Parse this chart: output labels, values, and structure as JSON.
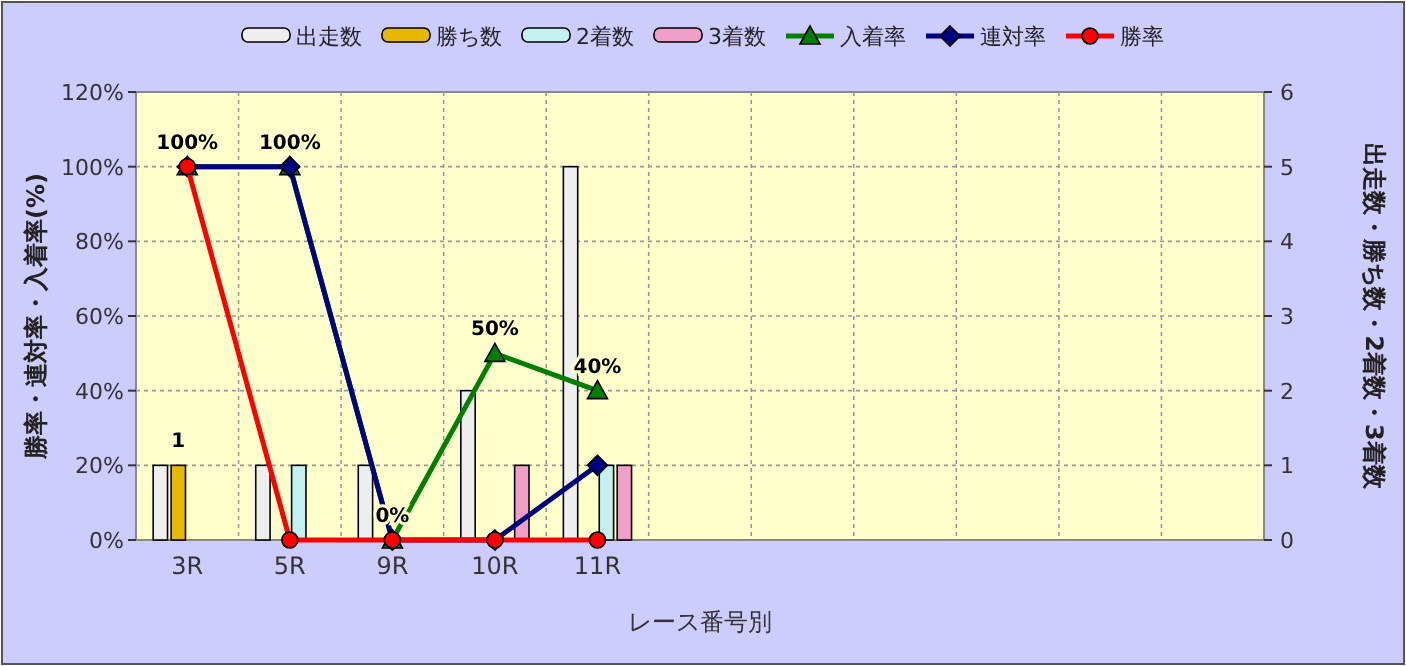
{
  "chart_data": {
    "type": "bar",
    "xlabel": "レース番号別",
    "ylabel": "勝率・連対率・入着率(%)",
    "y2label": "出走数・勝ち数・2着数・3着数",
    "categories": [
      "3R",
      "5R",
      "9R",
      "10R",
      "11R",
      null,
      null,
      null,
      null,
      null,
      null
    ],
    "ylim": [
      0,
      120
    ],
    "yticks": [
      {
        "value": 0,
        "label": "0%"
      },
      {
        "value": 20,
        "label": "20%"
      },
      {
        "value": 40,
        "label": "40%"
      },
      {
        "value": 60,
        "label": "60%"
      },
      {
        "value": 80,
        "label": "80%"
      },
      {
        "value": 100,
        "label": "100%"
      },
      {
        "value": 120,
        "label": "120%"
      }
    ],
    "y2lim": [
      0,
      6
    ],
    "y2ticks": [
      0,
      1,
      2,
      3,
      4,
      5,
      6
    ],
    "grid": true,
    "legend": "top",
    "series": [
      {
        "name": "出走数",
        "axis": "y2",
        "color": "#eeeeee",
        "values": [
          1,
          1,
          1,
          2,
          5,
          null,
          null,
          null,
          null,
          null,
          null
        ]
      },
      {
        "name": "勝ち数",
        "axis": "y2",
        "color": "#e6b800",
        "values": [
          1,
          0,
          0,
          0,
          0,
          null,
          null,
          null,
          null,
          null,
          null
        ],
        "value_labels": [
          "1",
          null,
          null,
          null,
          null,
          null,
          null,
          null,
          null,
          null,
          null
        ]
      },
      {
        "name": "2着数",
        "axis": "y2",
        "color": "#c4f0f0",
        "values": [
          0,
          1,
          0,
          0,
          1,
          null,
          null,
          null,
          null,
          null,
          null
        ]
      },
      {
        "name": "3着数",
        "axis": "y2",
        "color": "#f0a0c8",
        "values": [
          0,
          0,
          0,
          1,
          1,
          null,
          null,
          null,
          null,
          null,
          null
        ]
      },
      {
        "name": "入着率",
        "type": "line",
        "marker": "triangle",
        "color": "#008000",
        "values": [
          100,
          100,
          0,
          50,
          40,
          null,
          null,
          null,
          null,
          null,
          null
        ],
        "value_labels": [
          "100%",
          "100%",
          "0%",
          "50%",
          "40%",
          null,
          null,
          null,
          null,
          null,
          null
        ]
      },
      {
        "name": "連対率",
        "type": "line",
        "marker": "diamond",
        "color": "#000080",
        "values": [
          100,
          100,
          0,
          0,
          20,
          null,
          null,
          null,
          null,
          null,
          null
        ]
      },
      {
        "name": "勝率",
        "type": "line",
        "marker": "circle",
        "color": "#ff0000",
        "values": [
          100,
          0,
          0,
          0,
          0,
          null,
          null,
          null,
          null,
          null,
          null
        ]
      }
    ]
  }
}
